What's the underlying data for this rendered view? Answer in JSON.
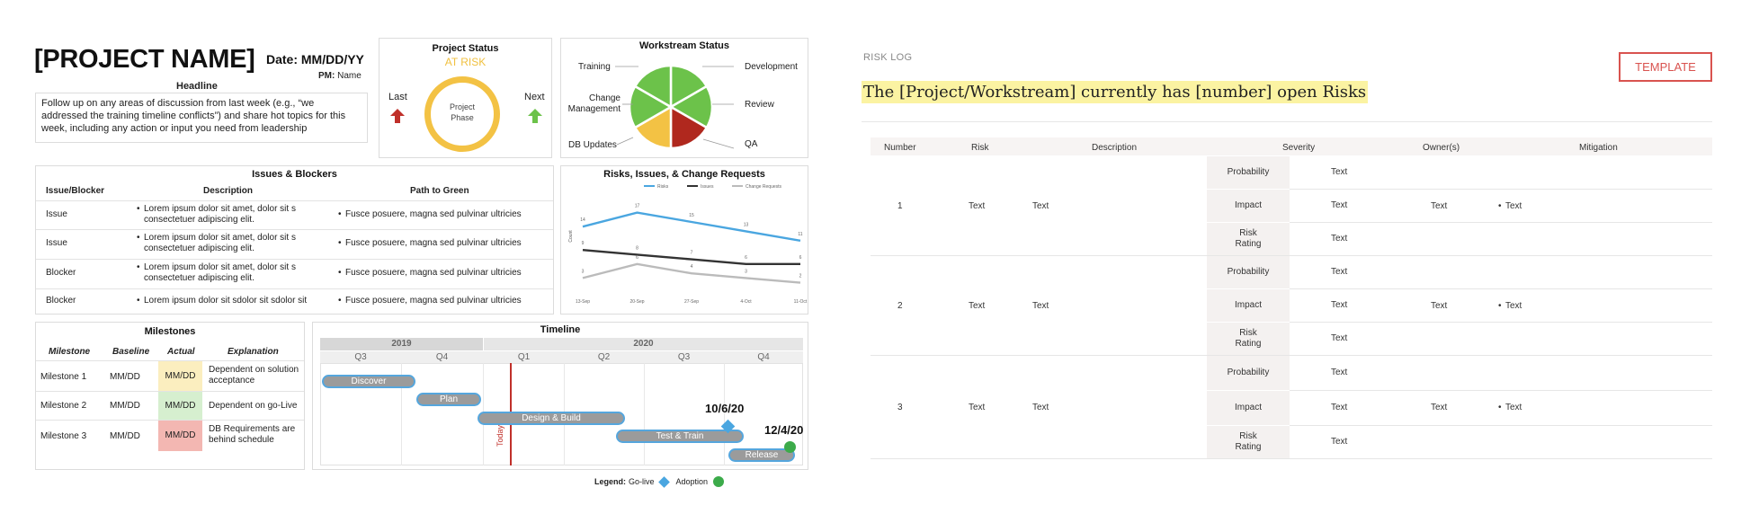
{
  "header": {
    "project_name": "[PROJECT NAME]",
    "date": "Date: MM/DD/YY",
    "pm_label": "PM:",
    "pm_name": "Name",
    "headline_label": "Headline",
    "headline_text": "Follow up on any areas of discussion from last week (e.g., “we addressed the training timeline conflicts”) and share hot topics for this week, including any action or input you need from leadership"
  },
  "project_status": {
    "title": "Project Status",
    "status": "AT RISK",
    "status_color": "#f0c040",
    "last_label": "Last",
    "next_label": "Next",
    "phase_label": "Project Phase",
    "last_color": "#c0302a",
    "next_color": "#6cc24a"
  },
  "workstream_status": {
    "title": "Workstream Status",
    "labels": [
      "Training",
      "Change Management",
      "DB Updates",
      "Development",
      "Review",
      "QA"
    ],
    "slices": [
      {
        "name": "Development",
        "color": "#6cc24a"
      },
      {
        "name": "Review",
        "color": "#6cc24a"
      },
      {
        "name": "QA",
        "color": "#b0281e"
      },
      {
        "name": "DB Updates",
        "color": "#f3c244"
      },
      {
        "name": "Change Management",
        "color": "#6cc24a"
      },
      {
        "name": "Training",
        "color": "#6cc24a"
      }
    ]
  },
  "issues": {
    "title": "Issues & Blockers",
    "headers": [
      "Issue/Blocker",
      "Description",
      "Path to Green"
    ],
    "rows": [
      {
        "type": "Issue",
        "desc": "Lorem ipsum dolor sit amet, dolor sit s consectetuer adipiscing elit.",
        "path": "Fusce posuere, magna sed pulvinar ultricies"
      },
      {
        "type": "Issue",
        "desc": "Lorem ipsum dolor sit amet, dolor sit s consectetuer adipiscing elit.",
        "path": "Fusce posuere, magna sed pulvinar ultricies"
      },
      {
        "type": "Blocker",
        "desc": "Lorem ipsum dolor sit amet, dolor sit s consectetuer adipiscing elit.",
        "path": "Fusce posuere, magna sed pulvinar ultricies"
      },
      {
        "type": "Blocker",
        "desc": "Lorem ipsum dolor sit sdolor sit sdolor sit",
        "path": "Fusce posuere, magna sed pulvinar ultricies"
      }
    ]
  },
  "chart_data": {
    "type": "line",
    "title": "Risks, Issues, & Change Requests",
    "ylabel": "Count",
    "xlabel": "",
    "categories": [
      "13-Sep",
      "20-Sep",
      "27-Sep",
      "4-Oct",
      "11-Oct"
    ],
    "ylim": [
      0,
      20
    ],
    "legend_position": "top",
    "series": [
      {
        "name": "Risks",
        "color": "#4aa6e0",
        "values": [
          14,
          17,
          15,
          13,
          11
        ]
      },
      {
        "name": "Issues",
        "color": "#333333",
        "values": [
          9,
          8,
          7,
          6,
          6
        ]
      },
      {
        "name": "Change Requests",
        "color": "#bbbbbb",
        "values": [
          3,
          6,
          4,
          3,
          2
        ]
      }
    ]
  },
  "milestones": {
    "title": "Milestones",
    "headers": [
      "Milestone",
      "Baseline",
      "Actual",
      "Explanation"
    ],
    "rows": [
      {
        "name": "Milestone 1",
        "baseline": "MM/DD",
        "actual": "MM/DD",
        "actual_color": "#fbeebf",
        "explanation": "Dependent on solution acceptance"
      },
      {
        "name": "Milestone 2",
        "baseline": "MM/DD",
        "actual": "MM/DD",
        "actual_color": "#d6efcf",
        "explanation": "Dependent on go-Live"
      },
      {
        "name": "Milestone 3",
        "baseline": "MM/DD",
        "actual": "MM/DD",
        "actual_color": "#f3b7b2",
        "explanation": "DB Requirements are behind schedule"
      }
    ]
  },
  "timeline": {
    "title": "Timeline",
    "years": [
      "2019",
      "2020"
    ],
    "quarters": [
      "Q3",
      "Q4",
      "Q1",
      "Q2",
      "Q3",
      "Q4"
    ],
    "bars": [
      "Discover",
      "Plan",
      "Design & Build",
      "Test & Train",
      "Release"
    ],
    "today_label": "Today",
    "golive_date": "10/6/20",
    "adoption_date": "12/4/20",
    "legend_label": "Legend:",
    "legend_golive": "Go-live",
    "legend_adoption": "Adoption"
  },
  "risk_log": {
    "section_label": "RISK LOG",
    "template_label": "TEMPLATE",
    "headline": "The [Project/Workstream] currently has [number] open Risks",
    "headers": [
      "Number",
      "Risk",
      "Description",
      "Severity",
      "Owner(s)",
      "Mitigation"
    ],
    "severity_labels": [
      "Probability",
      "Impact",
      "Risk Rating"
    ],
    "rows": [
      {
        "number": "1",
        "risk": "Text",
        "description": "Text",
        "probability": "Text",
        "impact": "Text",
        "rating": "Text",
        "owner": "Text",
        "mitigation": "Text"
      },
      {
        "number": "2",
        "risk": "Text",
        "description": "Text",
        "probability": "Text",
        "impact": "Text",
        "rating": "Text",
        "owner": "Text",
        "mitigation": "Text"
      },
      {
        "number": "3",
        "risk": "Text",
        "description": "Text",
        "probability": "Text",
        "impact": "Text",
        "rating": "Text",
        "owner": "Text",
        "mitigation": "Text"
      }
    ]
  }
}
